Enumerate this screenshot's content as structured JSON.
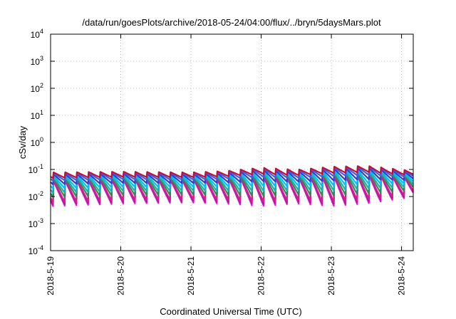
{
  "chart_data": {
    "type": "line",
    "title": "/data/run/goesPlots/archive/2018-05-24/04:00/flux/../bryn/5daysMars.plot",
    "xlabel": "Coordinated Universal Time (UTC)",
    "ylabel": "cSv/day",
    "yscale": "log",
    "ylim": [
      0.0001,
      10000
    ],
    "xlim": [
      "2018-05-19T00:00",
      "2018-05-24T04:00"
    ],
    "grid": true,
    "legend": "none",
    "x_tick_labels": [
      "2018-5-19",
      "2018-5-20",
      "2018-5-21",
      "2018-5-22",
      "2018-5-23",
      "2018-5-24"
    ],
    "y_tick_labels": [
      {
        "value": 0.0001,
        "base": "10",
        "exp": "-4"
      },
      {
        "value": 0.001,
        "base": "10",
        "exp": "-3"
      },
      {
        "value": 0.01,
        "base": "10",
        "exp": "-2"
      },
      {
        "value": 0.1,
        "base": "10",
        "exp": "-1"
      },
      {
        "value": 1,
        "base": "10",
        "exp": "0"
      },
      {
        "value": 10,
        "base": "10",
        "exp": "1"
      },
      {
        "value": 100,
        "base": "10",
        "exp": "2"
      },
      {
        "value": 1000,
        "base": "10",
        "exp": "3"
      },
      {
        "value": 10000,
        "base": "10",
        "exp": "4"
      }
    ],
    "sawtooth": {
      "period_hours": 4,
      "peak_offset_hours": 1,
      "peak_envelope": [
        {
          "x": "2018-05-19T00:00",
          "y": 0.08
        },
        {
          "x": "2018-05-20T00:00",
          "y": 0.085
        },
        {
          "x": "2018-05-21T00:00",
          "y": 0.08
        },
        {
          "x": "2018-05-21T12:00",
          "y": 0.09
        },
        {
          "x": "2018-05-22T00:00",
          "y": 0.12
        },
        {
          "x": "2018-05-22T12:00",
          "y": 0.1
        },
        {
          "x": "2018-05-23T00:00",
          "y": 0.13
        },
        {
          "x": "2018-05-23T12:00",
          "y": 0.14
        },
        {
          "x": "2018-05-24T04:00",
          "y": 0.09
        }
      ],
      "trough_envelope": [
        {
          "x": "2018-05-19T00:00",
          "y": 0.004
        },
        {
          "x": "2018-05-20T00:00",
          "y": 0.005
        },
        {
          "x": "2018-05-21T00:00",
          "y": 0.0055
        },
        {
          "x": "2018-05-21T12:00",
          "y": 0.005
        },
        {
          "x": "2018-05-22T00:00",
          "y": 0.004
        },
        {
          "x": "2018-05-22T12:00",
          "y": 0.005
        },
        {
          "x": "2018-05-23T00:00",
          "y": 0.004
        },
        {
          "x": "2018-05-23T12:00",
          "y": 0.005
        },
        {
          "x": "2018-05-24T04:00",
          "y": 0.009
        }
      ]
    },
    "series": [
      {
        "color": "#ff00ff",
        "level": 0.0
      },
      {
        "color": "#a0208a",
        "level": 0.06
      },
      {
        "color": "#d0208a",
        "level": 0.12
      },
      {
        "color": "#2e8b57",
        "level": 0.3
      },
      {
        "color": "#20b2aa",
        "level": 0.45
      },
      {
        "color": "#00c0ff",
        "level": 0.6
      },
      {
        "color": "#3a3ac8",
        "level": 0.75
      },
      {
        "color": "#4060e0",
        "level": 0.88
      },
      {
        "color": "#c0103a",
        "level": 0.97
      }
    ]
  }
}
